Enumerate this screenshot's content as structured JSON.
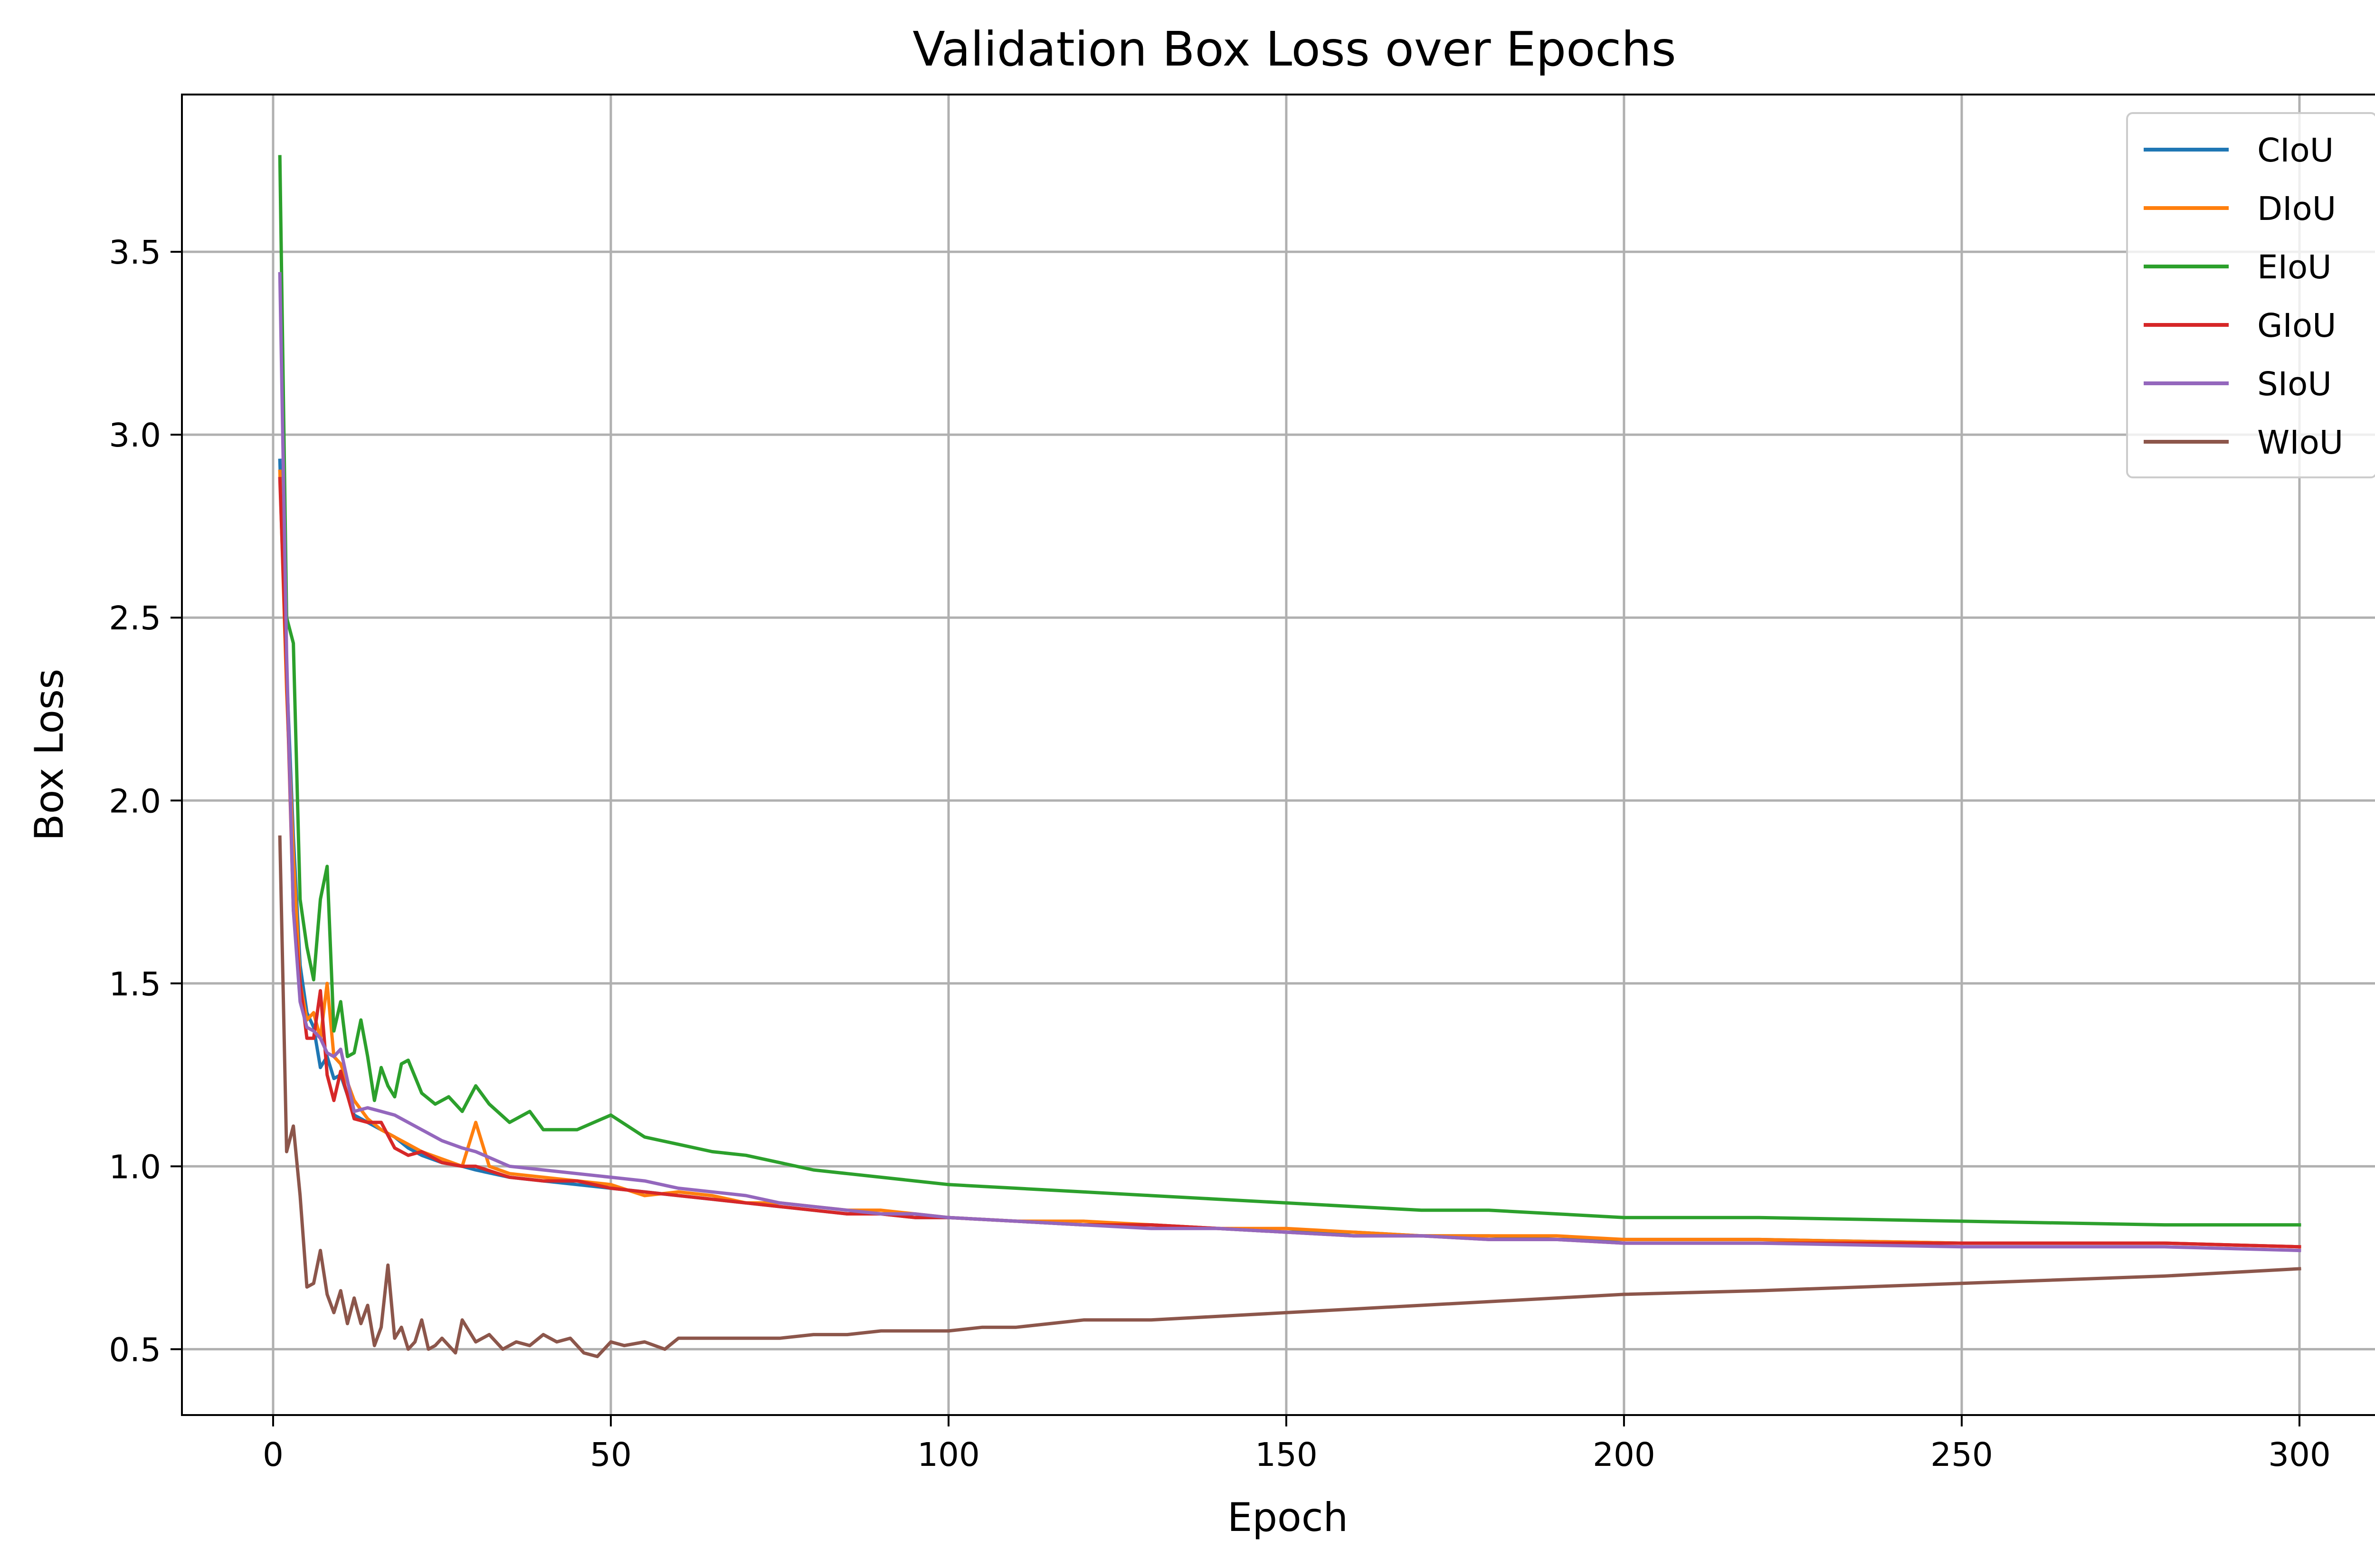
{
  "chart_data": {
    "type": "line",
    "title": "Validation Box Loss over Epochs",
    "xlabel": "Epoch",
    "ylabel": "Box Loss",
    "xlim": [
      -13.5,
      314
    ],
    "ylim": [
      0.32,
      3.93
    ],
    "xticks": [
      0,
      50,
      100,
      150,
      200,
      250,
      300
    ],
    "xtick_labels": [
      "0",
      "50",
      "100",
      "150",
      "200",
      "250",
      "300"
    ],
    "yticks": [
      0.5,
      1.0,
      1.5,
      2.0,
      2.5,
      3.0,
      3.5
    ],
    "ytick_labels": [
      "0.5",
      "1.0",
      "1.5",
      "2.0",
      "2.5",
      "3.0",
      "3.5"
    ],
    "grid": true,
    "legend_position": "top-right",
    "series": [
      {
        "name": "CIoU",
        "color": "#1f77b4",
        "points": [
          [
            1,
            2.93
          ],
          [
            2,
            2.35
          ],
          [
            3,
            1.9
          ],
          [
            4,
            1.55
          ],
          [
            5,
            1.42
          ],
          [
            6,
            1.38
          ],
          [
            7,
            1.27
          ],
          [
            8,
            1.3
          ],
          [
            9,
            1.24
          ],
          [
            10,
            1.25
          ],
          [
            12,
            1.14
          ],
          [
            14,
            1.12
          ],
          [
            16,
            1.1
          ],
          [
            18,
            1.08
          ],
          [
            20,
            1.05
          ],
          [
            22,
            1.03
          ],
          [
            25,
            1.01
          ],
          [
            28,
            1.0
          ],
          [
            30,
            0.99
          ],
          [
            35,
            0.97
          ],
          [
            40,
            0.96
          ],
          [
            45,
            0.95
          ],
          [
            50,
            0.94
          ],
          [
            55,
            0.93
          ],
          [
            60,
            0.92
          ],
          [
            65,
            0.91
          ],
          [
            70,
            0.9
          ],
          [
            75,
            0.89
          ],
          [
            80,
            0.88
          ],
          [
            85,
            0.87
          ],
          [
            90,
            0.87
          ],
          [
            95,
            0.86
          ],
          [
            100,
            0.86
          ],
          [
            110,
            0.85
          ],
          [
            120,
            0.84
          ],
          [
            130,
            0.84
          ],
          [
            140,
            0.83
          ],
          [
            150,
            0.82
          ],
          [
            160,
            0.82
          ],
          [
            170,
            0.81
          ],
          [
            180,
            0.81
          ],
          [
            190,
            0.8
          ],
          [
            200,
            0.8
          ],
          [
            220,
            0.8
          ],
          [
            250,
            0.79
          ],
          [
            280,
            0.79
          ],
          [
            300,
            0.78
          ]
        ]
      },
      {
        "name": "DIoU",
        "color": "#ff7f0e",
        "points": [
          [
            1,
            2.9
          ],
          [
            2,
            2.3
          ],
          [
            3,
            1.85
          ],
          [
            4,
            1.5
          ],
          [
            5,
            1.4
          ],
          [
            6,
            1.42
          ],
          [
            7,
            1.35
          ],
          [
            8,
            1.5
          ],
          [
            9,
            1.3
          ],
          [
            10,
            1.28
          ],
          [
            12,
            1.18
          ],
          [
            14,
            1.13
          ],
          [
            16,
            1.1
          ],
          [
            18,
            1.08
          ],
          [
            20,
            1.06
          ],
          [
            22,
            1.04
          ],
          [
            25,
            1.02
          ],
          [
            28,
            1.0
          ],
          [
            30,
            1.12
          ],
          [
            32,
            1.0
          ],
          [
            35,
            0.98
          ],
          [
            40,
            0.97
          ],
          [
            45,
            0.96
          ],
          [
            50,
            0.95
          ],
          [
            55,
            0.92
          ],
          [
            60,
            0.93
          ],
          [
            65,
            0.92
          ],
          [
            70,
            0.9
          ],
          [
            75,
            0.9
          ],
          [
            80,
            0.89
          ],
          [
            85,
            0.88
          ],
          [
            90,
            0.88
          ],
          [
            95,
            0.87
          ],
          [
            100,
            0.86
          ],
          [
            110,
            0.85
          ],
          [
            120,
            0.85
          ],
          [
            130,
            0.84
          ],
          [
            140,
            0.83
          ],
          [
            150,
            0.83
          ],
          [
            160,
            0.82
          ],
          [
            170,
            0.81
          ],
          [
            180,
            0.81
          ],
          [
            190,
            0.81
          ],
          [
            200,
            0.8
          ],
          [
            220,
            0.8
          ],
          [
            250,
            0.79
          ],
          [
            280,
            0.79
          ],
          [
            300,
            0.78
          ]
        ]
      },
      {
        "name": "EIoU",
        "color": "#2ca02c",
        "points": [
          [
            1,
            3.76
          ],
          [
            2,
            2.5
          ],
          [
            3,
            2.43
          ],
          [
            4,
            1.73
          ],
          [
            5,
            1.6
          ],
          [
            6,
            1.51
          ],
          [
            7,
            1.73
          ],
          [
            8,
            1.82
          ],
          [
            9,
            1.37
          ],
          [
            10,
            1.45
          ],
          [
            11,
            1.3
          ],
          [
            12,
            1.31
          ],
          [
            13,
            1.4
          ],
          [
            14,
            1.3
          ],
          [
            15,
            1.18
          ],
          [
            16,
            1.27
          ],
          [
            17,
            1.22
          ],
          [
            18,
            1.19
          ],
          [
            19,
            1.28
          ],
          [
            20,
            1.29
          ],
          [
            22,
            1.2
          ],
          [
            24,
            1.17
          ],
          [
            26,
            1.19
          ],
          [
            28,
            1.15
          ],
          [
            30,
            1.22
          ],
          [
            32,
            1.17
          ],
          [
            35,
            1.12
          ],
          [
            38,
            1.15
          ],
          [
            40,
            1.1
          ],
          [
            45,
            1.1
          ],
          [
            50,
            1.14
          ],
          [
            55,
            1.08
          ],
          [
            60,
            1.06
          ],
          [
            65,
            1.04
          ],
          [
            70,
            1.03
          ],
          [
            75,
            1.01
          ],
          [
            80,
            0.99
          ],
          [
            85,
            0.98
          ],
          [
            90,
            0.97
          ],
          [
            95,
            0.96
          ],
          [
            100,
            0.95
          ],
          [
            110,
            0.94
          ],
          [
            120,
            0.93
          ],
          [
            130,
            0.92
          ],
          [
            140,
            0.91
          ],
          [
            150,
            0.9
          ],
          [
            160,
            0.89
          ],
          [
            170,
            0.88
          ],
          [
            180,
            0.88
          ],
          [
            190,
            0.87
          ],
          [
            200,
            0.86
          ],
          [
            220,
            0.86
          ],
          [
            250,
            0.85
          ],
          [
            280,
            0.84
          ],
          [
            300,
            0.84
          ]
        ]
      },
      {
        "name": "GIoU",
        "color": "#d62728",
        "points": [
          [
            1,
            2.88
          ],
          [
            2,
            2.35
          ],
          [
            3,
            1.7
          ],
          [
            4,
            1.5
          ],
          [
            5,
            1.35
          ],
          [
            6,
            1.35
          ],
          [
            7,
            1.48
          ],
          [
            8,
            1.25
          ],
          [
            9,
            1.18
          ],
          [
            10,
            1.26
          ],
          [
            12,
            1.13
          ],
          [
            14,
            1.12
          ],
          [
            16,
            1.12
          ],
          [
            18,
            1.05
          ],
          [
            20,
            1.03
          ],
          [
            22,
            1.04
          ],
          [
            25,
            1.01
          ],
          [
            28,
            1.0
          ],
          [
            30,
            1.0
          ],
          [
            35,
            0.97
          ],
          [
            40,
            0.96
          ],
          [
            45,
            0.96
          ],
          [
            50,
            0.94
          ],
          [
            55,
            0.93
          ],
          [
            60,
            0.92
          ],
          [
            65,
            0.91
          ],
          [
            70,
            0.9
          ],
          [
            75,
            0.89
          ],
          [
            80,
            0.88
          ],
          [
            85,
            0.87
          ],
          [
            90,
            0.87
          ],
          [
            95,
            0.86
          ],
          [
            100,
            0.86
          ],
          [
            110,
            0.85
          ],
          [
            120,
            0.84
          ],
          [
            130,
            0.84
          ],
          [
            140,
            0.83
          ],
          [
            150,
            0.82
          ],
          [
            160,
            0.81
          ],
          [
            170,
            0.81
          ],
          [
            180,
            0.8
          ],
          [
            190,
            0.8
          ],
          [
            200,
            0.79
          ],
          [
            220,
            0.79
          ],
          [
            250,
            0.79
          ],
          [
            280,
            0.79
          ],
          [
            300,
            0.78
          ]
        ]
      },
      {
        "name": "SIoU",
        "color": "#9467bd",
        "points": [
          [
            1,
            3.44
          ],
          [
            2,
            2.4
          ],
          [
            3,
            1.7
          ],
          [
            4,
            1.45
          ],
          [
            5,
            1.38
          ],
          [
            6,
            1.37
          ],
          [
            7,
            1.35
          ],
          [
            8,
            1.31
          ],
          [
            9,
            1.3
          ],
          [
            10,
            1.32
          ],
          [
            12,
            1.15
          ],
          [
            14,
            1.16
          ],
          [
            16,
            1.15
          ],
          [
            18,
            1.14
          ],
          [
            20,
            1.12
          ],
          [
            22,
            1.1
          ],
          [
            25,
            1.07
          ],
          [
            28,
            1.05
          ],
          [
            30,
            1.04
          ],
          [
            35,
            1.0
          ],
          [
            40,
            0.99
          ],
          [
            45,
            0.98
          ],
          [
            50,
            0.97
          ],
          [
            55,
            0.96
          ],
          [
            60,
            0.94
          ],
          [
            65,
            0.93
          ],
          [
            70,
            0.92
          ],
          [
            75,
            0.9
          ],
          [
            80,
            0.89
          ],
          [
            85,
            0.88
          ],
          [
            90,
            0.87
          ],
          [
            95,
            0.87
          ],
          [
            100,
            0.86
          ],
          [
            110,
            0.85
          ],
          [
            120,
            0.84
          ],
          [
            130,
            0.83
          ],
          [
            140,
            0.83
          ],
          [
            150,
            0.82
          ],
          [
            160,
            0.81
          ],
          [
            170,
            0.81
          ],
          [
            180,
            0.8
          ],
          [
            190,
            0.8
          ],
          [
            200,
            0.79
          ],
          [
            220,
            0.79
          ],
          [
            250,
            0.78
          ],
          [
            280,
            0.78
          ],
          [
            300,
            0.77
          ]
        ]
      },
      {
        "name": "WIoU",
        "color": "#8c564b",
        "points": [
          [
            1,
            1.9
          ],
          [
            2,
            1.04
          ],
          [
            3,
            1.11
          ],
          [
            4,
            0.92
          ],
          [
            5,
            0.67
          ],
          [
            6,
            0.68
          ],
          [
            7,
            0.77
          ],
          [
            8,
            0.65
          ],
          [
            9,
            0.6
          ],
          [
            10,
            0.66
          ],
          [
            11,
            0.57
          ],
          [
            12,
            0.64
          ],
          [
            13,
            0.57
          ],
          [
            14,
            0.62
          ],
          [
            15,
            0.51
          ],
          [
            16,
            0.56
          ],
          [
            17,
            0.73
          ],
          [
            18,
            0.53
          ],
          [
            19,
            0.56
          ],
          [
            20,
            0.5
          ],
          [
            21,
            0.52
          ],
          [
            22,
            0.58
          ],
          [
            23,
            0.5
          ],
          [
            24,
            0.51
          ],
          [
            25,
            0.53
          ],
          [
            27,
            0.49
          ],
          [
            28,
            0.58
          ],
          [
            30,
            0.52
          ],
          [
            32,
            0.54
          ],
          [
            34,
            0.5
          ],
          [
            36,
            0.52
          ],
          [
            38,
            0.51
          ],
          [
            40,
            0.54
          ],
          [
            42,
            0.52
          ],
          [
            44,
            0.53
          ],
          [
            46,
            0.49
          ],
          [
            48,
            0.48
          ],
          [
            50,
            0.52
          ],
          [
            52,
            0.51
          ],
          [
            55,
            0.52
          ],
          [
            58,
            0.5
          ],
          [
            60,
            0.53
          ],
          [
            65,
            0.53
          ],
          [
            70,
            0.53
          ],
          [
            75,
            0.53
          ],
          [
            80,
            0.54
          ],
          [
            85,
            0.54
          ],
          [
            90,
            0.55
          ],
          [
            95,
            0.55
          ],
          [
            100,
            0.55
          ],
          [
            105,
            0.56
          ],
          [
            110,
            0.56
          ],
          [
            115,
            0.57
          ],
          [
            120,
            0.58
          ],
          [
            125,
            0.58
          ],
          [
            130,
            0.58
          ],
          [
            140,
            0.59
          ],
          [
            150,
            0.6
          ],
          [
            160,
            0.61
          ],
          [
            170,
            0.62
          ],
          [
            180,
            0.63
          ],
          [
            190,
            0.64
          ],
          [
            200,
            0.65
          ],
          [
            220,
            0.66
          ],
          [
            250,
            0.68
          ],
          [
            280,
            0.7
          ],
          [
            300,
            0.72
          ]
        ]
      }
    ]
  }
}
